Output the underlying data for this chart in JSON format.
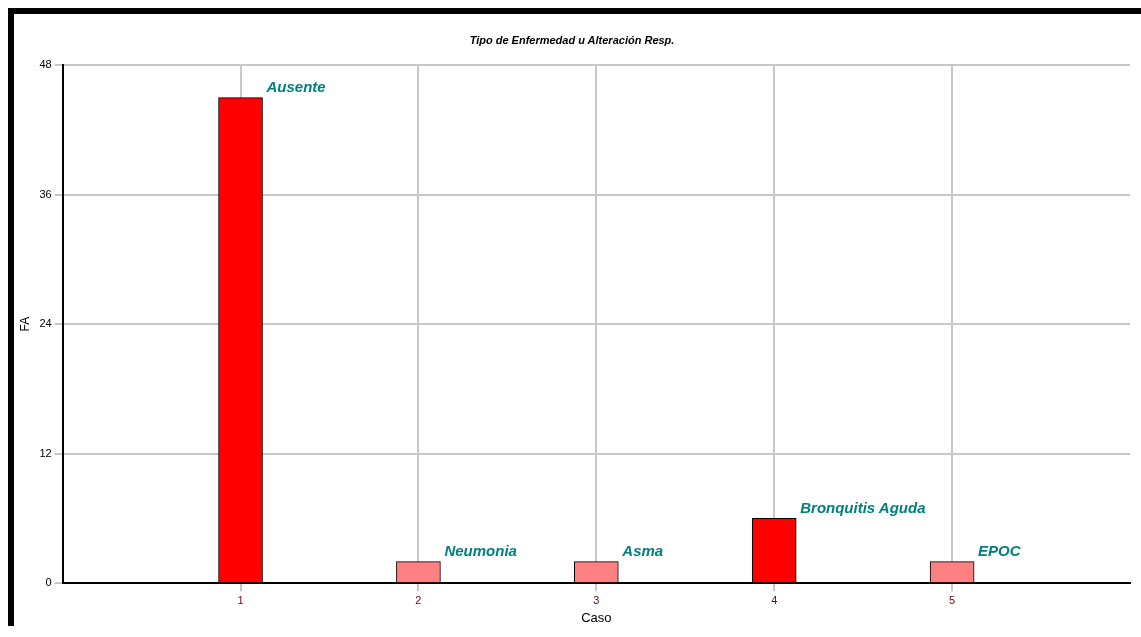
{
  "chart_data": {
    "type": "bar",
    "title": "Tipo de Enfermedad u Alteración Resp.",
    "xlabel": "Caso",
    "ylabel": "FA",
    "x": [
      1,
      2,
      3,
      4,
      5
    ],
    "values": [
      45,
      2,
      2,
      6,
      2
    ],
    "colors": [
      "#ff0000",
      "#ff8080",
      "#ff8080",
      "#ff0000",
      "#ff8080"
    ],
    "xlim": [
      0,
      6
    ],
    "xticks": [
      1,
      2,
      3,
      4,
      5
    ],
    "ylim": [
      0,
      48
    ],
    "yticks": [
      0,
      12,
      24,
      36,
      48
    ],
    "grid": true,
    "legend": false,
    "annotations": [
      {
        "text": "Ausente",
        "x": 1,
        "y": 45
      },
      {
        "text": "Neumonia",
        "x": 2,
        "y": 2
      },
      {
        "text": "Asma",
        "x": 3,
        "y": 2
      },
      {
        "text": "Bronquitis Aguda",
        "x": 4,
        "y": 6
      },
      {
        "text": "EPOC",
        "x": 5,
        "y": 2
      }
    ]
  }
}
